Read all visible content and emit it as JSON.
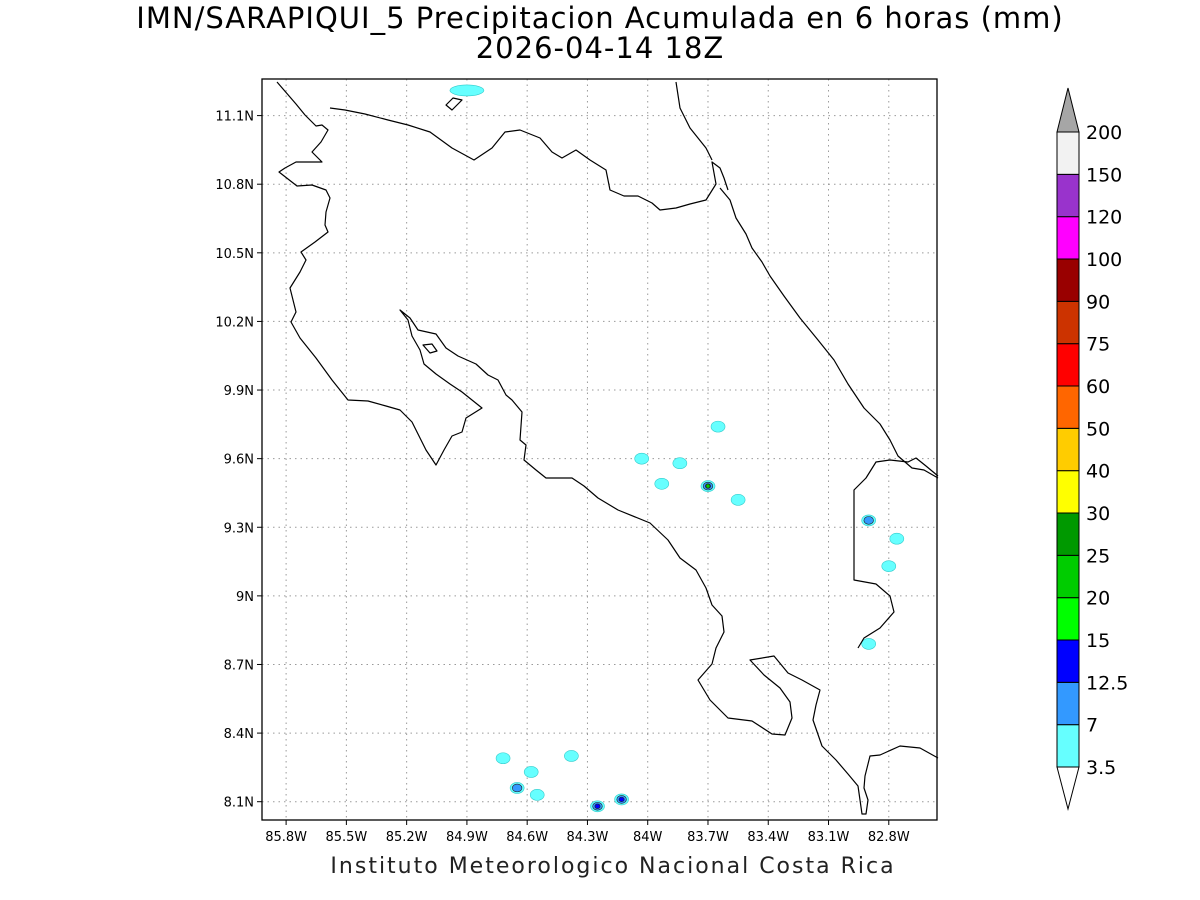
{
  "title": {
    "line1": "IMN/SARAPIQUI_5 Precipitacion Acumulada en 6 horas (mm)",
    "line2": "2026-04-14 18Z"
  },
  "credit": "Instituto Meteorologico Nacional Costa Rica",
  "map": {
    "lon_range": [
      -85.92,
      -82.56
    ],
    "lat_range": [
      8.02,
      11.26
    ],
    "lon_ticks": [
      {
        "value": -85.8,
        "label": "85.8W"
      },
      {
        "value": -85.5,
        "label": "85.5W"
      },
      {
        "value": -85.2,
        "label": "85.2W"
      },
      {
        "value": -84.9,
        "label": "84.9W"
      },
      {
        "value": -84.6,
        "label": "84.6W"
      },
      {
        "value": -84.3,
        "label": "84.3W"
      },
      {
        "value": -84.0,
        "label": "84W"
      },
      {
        "value": -83.7,
        "label": "83.7W"
      },
      {
        "value": -83.4,
        "label": "83.4W"
      },
      {
        "value": -83.1,
        "label": "83.1W"
      },
      {
        "value": -82.8,
        "label": "82.8W"
      }
    ],
    "lat_ticks": [
      {
        "value": 11.1,
        "label": "11.1N"
      },
      {
        "value": 10.8,
        "label": "10.8N"
      },
      {
        "value": 10.5,
        "label": "10.5N"
      },
      {
        "value": 10.2,
        "label": "10.2N"
      },
      {
        "value": 9.9,
        "label": "9.9N"
      },
      {
        "value": 9.6,
        "label": "9.6N"
      },
      {
        "value": 9.3,
        "label": "9.3N"
      },
      {
        "value": 9.0,
        "label": "9N"
      },
      {
        "value": 8.7,
        "label": "8.7N"
      },
      {
        "value": 8.4,
        "label": "8.4N"
      },
      {
        "value": 8.1,
        "label": "8.1N"
      }
    ],
    "grid": "dotted",
    "coastline_color": "#000000"
  },
  "colorbar": {
    "levels": [
      "3.5",
      "7",
      "12.5",
      "15",
      "20",
      "25",
      "30",
      "40",
      "50",
      "60",
      "75",
      "90",
      "100",
      "120",
      "150",
      "200"
    ],
    "colors": [
      "#66ffff",
      "#3399ff",
      "#0000ff",
      "#00ff00",
      "#00cc00",
      "#009900",
      "#ffff00",
      "#ffcc00",
      "#ff6600",
      "#ff0000",
      "#cc3300",
      "#990000",
      "#ff00ff",
      "#9933cc",
      "#f2f2f2",
      "#a6a6a6"
    ],
    "under_color": "#ffffff",
    "over_color": "#a6a6a6"
  },
  "precip_cells": [
    {
      "lon": -84.9,
      "lat": 11.21,
      "level": 1
    },
    {
      "lon": -84.03,
      "lat": 9.6,
      "level": 1
    },
    {
      "lon": -83.84,
      "lat": 9.58,
      "level": 1
    },
    {
      "lon": -83.93,
      "lat": 9.49,
      "level": 1
    },
    {
      "lon": -83.7,
      "lat": 9.48,
      "level": 5
    },
    {
      "lon": -83.65,
      "lat": 9.74,
      "level": 1
    },
    {
      "lon": -83.55,
      "lat": 9.42,
      "level": 1
    },
    {
      "lon": -82.9,
      "lat": 9.33,
      "level": 2
    },
    {
      "lon": -82.76,
      "lat": 9.25,
      "level": 1
    },
    {
      "lon": -82.8,
      "lat": 9.13,
      "level": 1
    },
    {
      "lon": -82.9,
      "lat": 8.79,
      "level": 1
    },
    {
      "lon": -84.72,
      "lat": 8.29,
      "level": 1
    },
    {
      "lon": -84.38,
      "lat": 8.3,
      "level": 1
    },
    {
      "lon": -84.58,
      "lat": 8.23,
      "level": 1
    },
    {
      "lon": -84.65,
      "lat": 8.16,
      "level": 2
    },
    {
      "lon": -84.55,
      "lat": 8.13,
      "level": 1
    },
    {
      "lon": -84.25,
      "lat": 8.08,
      "level": 3
    },
    {
      "lon": -84.13,
      "lat": 8.11,
      "level": 3
    }
  ]
}
